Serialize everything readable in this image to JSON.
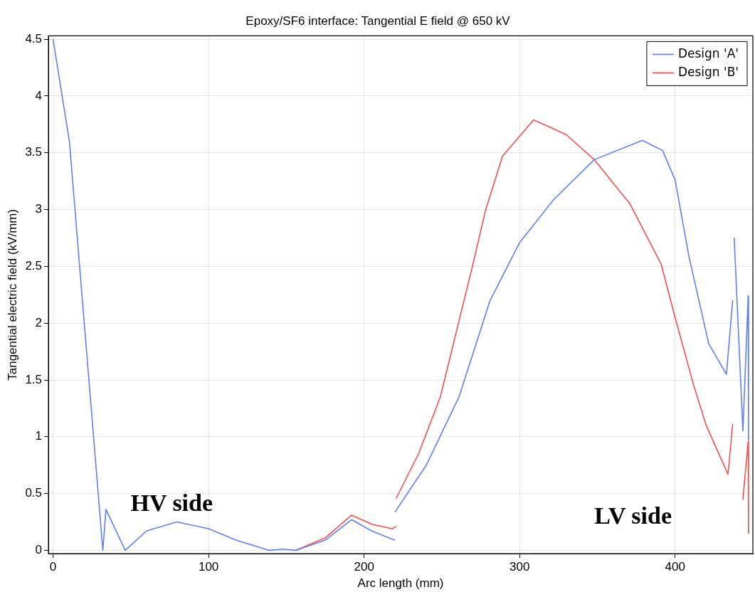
{
  "chart_data": {
    "type": "line",
    "title": "Epoxy/SF6 interface: Tangential E field @ 650 kV",
    "xlabel": "Arc length (mm)",
    "ylabel": "Tangential electric field (kV/mm)",
    "xlim": [
      -3,
      450
    ],
    "xticks": [
      0,
      100,
      200,
      300,
      400
    ],
    "ylim": [
      -0.03,
      4.53
    ],
    "yticks": [
      0,
      0.5,
      1,
      1.5,
      2,
      2.5,
      3,
      3.5,
      4,
      4.5
    ],
    "grid": true,
    "legend": "top right",
    "marker": "none",
    "line_style": "solid",
    "annotations": [
      "HV side",
      "LV side"
    ],
    "series": [
      {
        "name": "Design 'A'",
        "color": "#5f7ff2",
        "x": [
          0,
          10.5,
          32,
          34,
          46.4,
          60,
          79.4,
          100,
          117.6,
          139,
          148,
          156,
          175,
          192,
          205,
          219.5,
          219.8,
          220,
          240,
          261,
          281,
          300,
          322,
          348,
          379,
          392,
          400,
          409,
          421.6,
          433,
          437,
          437.5,
          438,
          443.6,
          447,
          447.2
        ],
        "values": [
          4.5,
          3.6,
          0,
          0.36,
          0,
          0.17,
          0.25,
          0.19,
          0.09,
          0,
          0.01,
          0,
          0.09,
          0.27,
          0.17,
          0.09,
          null,
          0.34,
          0.75,
          1.35,
          2.2,
          2.71,
          3.09,
          3.44,
          3.61,
          3.52,
          3.26,
          2.58,
          1.82,
          1.55,
          2.2,
          null,
          2.75,
          1.05,
          2.24,
          0.97
        ]
      },
      {
        "name": "Design 'B'",
        "color": "#f44e4e",
        "x": [
          156,
          175,
          192,
          205,
          218,
          220.5,
          220.6,
          220.7,
          235,
          249,
          270,
          278,
          289,
          309,
          330,
          348,
          371,
          391,
          400,
          412,
          420,
          434,
          437,
          437.5,
          443.6,
          447,
          447.2
        ],
        "values": [
          0,
          0.11,
          0.31,
          0.23,
          0.19,
          0.21,
          null,
          0.46,
          0.85,
          1.35,
          2.52,
          2.99,
          3.47,
          3.79,
          3.66,
          3.44,
          3.05,
          2.52,
          2.05,
          1.45,
          1.1,
          0.67,
          1.11,
          null,
          0.45,
          0.96,
          0.15
        ]
      }
    ]
  }
}
